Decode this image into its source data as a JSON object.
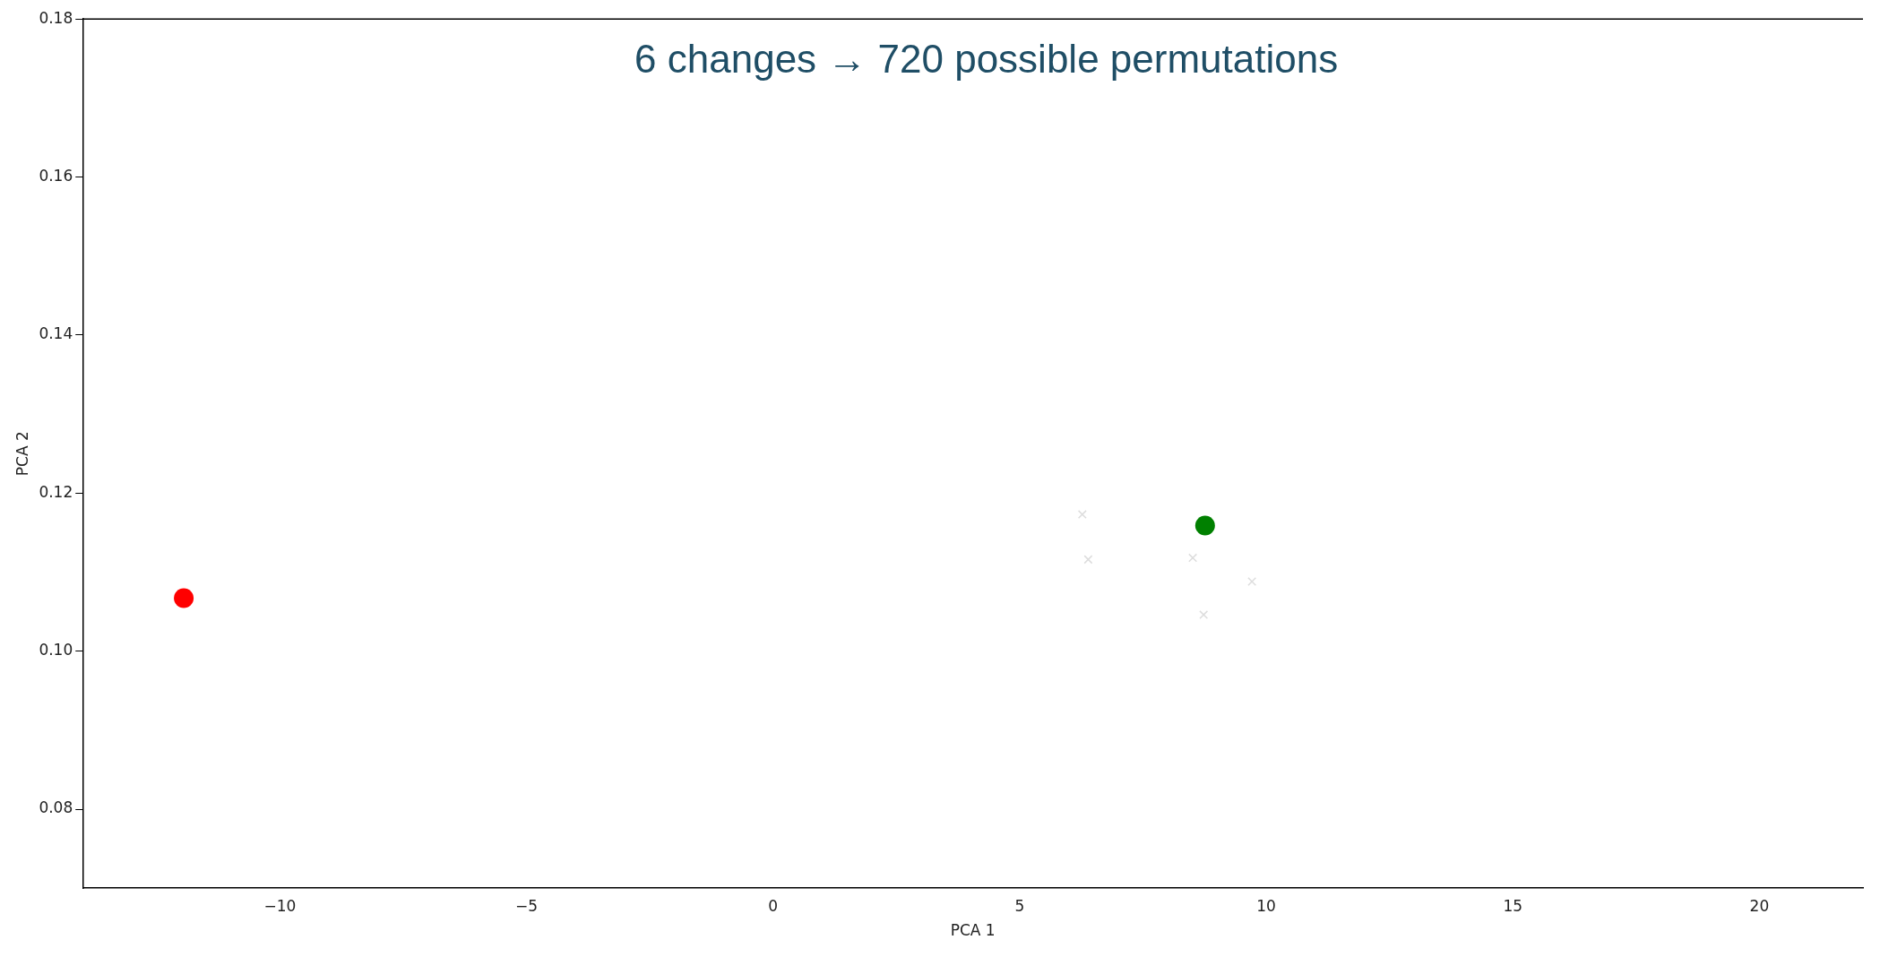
{
  "chart_data": {
    "type": "scatter",
    "title": "6 changes → 720 possible permutations",
    "xlabel": "PCA 1",
    "ylabel": "PCA 2",
    "xlim": [
      -14,
      22.1
    ],
    "xticks": [
      {
        "value": -10,
        "label": "−10"
      },
      {
        "value": -5,
        "label": "−5"
      },
      0,
      5,
      10,
      15,
      20
    ],
    "ylim": [
      0.07,
      0.18
    ],
    "yticks": [
      0.08,
      {
        "value": 0.1,
        "label": "0.10"
      },
      0.12,
      0.14,
      0.16,
      0.18
    ],
    "grid": false,
    "legend": false,
    "series": [
      {
        "color": "#ff0000",
        "marker": "circle",
        "x": [
          -11.95
        ],
        "values": [
          0.1067
        ]
      },
      {
        "color": "#008000",
        "marker": "circle",
        "x": [
          8.76
        ],
        "values": [
          0.1159
        ]
      },
      {
        "color": "#dddddd",
        "marker": "cross",
        "x": [
          6.27,
          6.39,
          8.51,
          9.71,
          8.73
        ],
        "values": [
          0.1173,
          0.1116,
          0.1118,
          0.1088,
          0.1046
        ]
      }
    ]
  }
}
